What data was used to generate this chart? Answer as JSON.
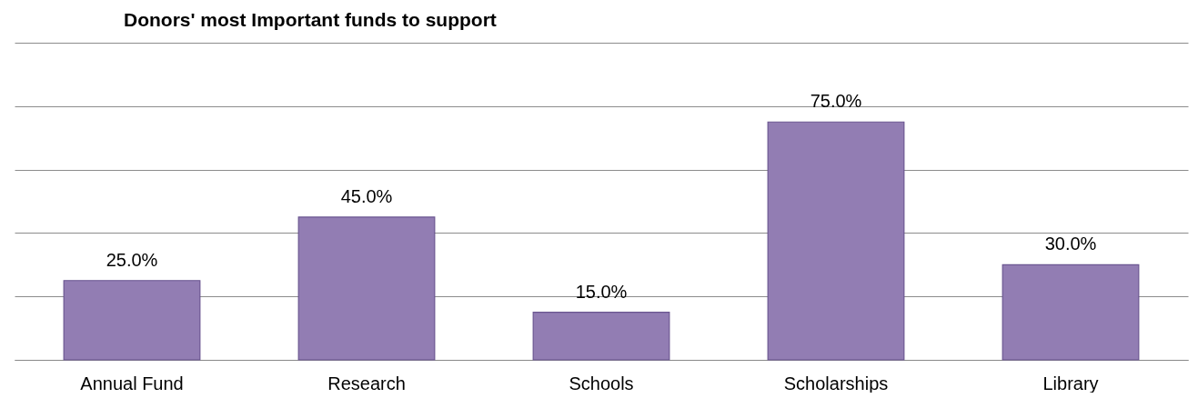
{
  "chart_data": {
    "type": "bar",
    "title": "Donors' most Important funds to support",
    "categories": [
      "Annual Fund",
      "Research",
      "Schools",
      "Scholarships",
      "Library"
    ],
    "values": [
      25,
      45,
      15,
      75,
      30
    ],
    "value_labels": [
      "25.0%",
      "45.0%",
      "15.0%",
      "75.0%",
      "30.0%"
    ],
    "color": "#927db3",
    "ylim": [
      0,
      100
    ],
    "yticks": [
      {
        "value": 0,
        "label": null
      },
      {
        "value": 20,
        "label": null
      },
      {
        "value": 40,
        "label": null
      },
      {
        "value": 60,
        "label": null
      },
      {
        "value": 80,
        "label": null
      },
      {
        "value": 100,
        "label": null
      }
    ],
    "grid": "y",
    "tick_labels": "x"
  }
}
